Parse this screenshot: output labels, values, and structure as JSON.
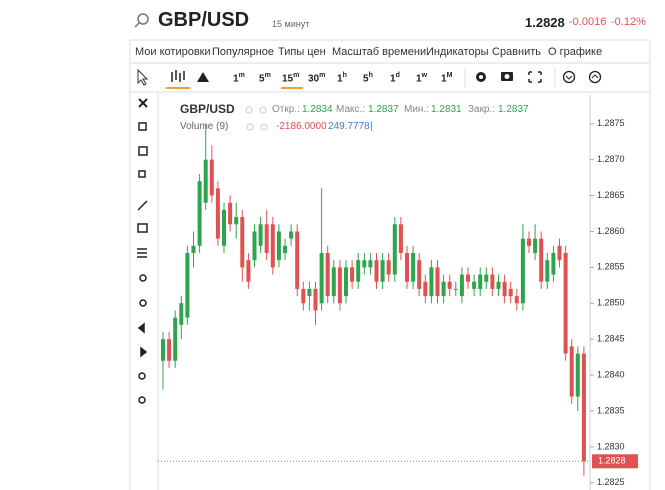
{
  "header": {
    "symbol": "GBP/USD",
    "interval": "15 минут",
    "price": "1.2828",
    "change": "-0.0016",
    "change_pct": "-0.12%"
  },
  "menu": [
    "Мои котировки",
    "Популярное",
    "Типы цен",
    "Масштаб времени",
    "Индикаторы",
    "Сравнить",
    "О графике"
  ],
  "timeframes": [
    {
      "n": "1",
      "u": "m"
    },
    {
      "n": "5",
      "u": "m"
    },
    {
      "n": "15",
      "u": "m"
    },
    {
      "n": "30",
      "u": "m"
    },
    {
      "n": "1",
      "u": "h"
    },
    {
      "n": "5",
      "u": "h"
    },
    {
      "n": "1",
      "u": "d"
    },
    {
      "n": "1",
      "u": "w"
    },
    {
      "n": "1",
      "u": "M"
    }
  ],
  "legend": {
    "symbol": "GBP/USD",
    "open_label": "Откр.:",
    "open": "1.2834",
    "high_label": "Макс.:",
    "high": "1.2837",
    "low_label": "Мин.:",
    "low": "1.2831",
    "close_label": "Закр.:",
    "close": "1.2837",
    "volume_label": "Volume (9)",
    "volume_a": "-2186.0000",
    "volume_b": "249.7778",
    "sep": "|"
  },
  "chart_data": {
    "type": "candlestick",
    "up_color": "#2ea44f",
    "down_color": "#e0524f",
    "ylim": [
      1.2824,
      1.2879
    ],
    "yticks": [
      1.2825,
      {
        "value": 1.283,
        "label": "1.2830"
      },
      1.2835,
      {
        "value": 1.284,
        "label": "1.2840"
      },
      1.2845,
      {
        "value": 1.285,
        "label": "1.2850"
      },
      1.2855,
      {
        "value": 1.286,
        "label": "1.2860"
      },
      1.2865,
      {
        "value": 1.287,
        "label": "1.2870"
      },
      1.2875
    ],
    "last_price": 1.2828,
    "candles": [
      [
        1.2842,
        1.2846,
        1.2838,
        1.2845
      ],
      [
        1.2845,
        1.2846,
        1.2841,
        1.2842
      ],
      [
        1.2842,
        1.2849,
        1.2841,
        1.2848
      ],
      [
        1.2847,
        1.2851,
        1.2845,
        1.285
      ],
      [
        1.2848,
        1.2858,
        1.2847,
        1.2857
      ],
      [
        1.2857,
        1.286,
        1.2855,
        1.2858
      ],
      [
        1.2858,
        1.2868,
        1.2857,
        1.2867
      ],
      [
        1.2864,
        1.2875,
        1.2863,
        1.287
      ],
      [
        1.287,
        1.2872,
        1.2864,
        1.2865
      ],
      [
        1.2866,
        1.2867,
        1.2858,
        1.2859
      ],
      [
        1.2858,
        1.2864,
        1.2857,
        1.2863
      ],
      [
        1.2864,
        1.2865,
        1.286,
        1.2861
      ],
      [
        1.2861,
        1.2864,
        1.2859,
        1.2862
      ],
      [
        1.2862,
        1.2863,
        1.2853,
        1.2855
      ],
      [
        1.2856,
        1.2857,
        1.2852,
        1.2853
      ],
      [
        1.2856,
        1.2861,
        1.2855,
        1.286
      ],
      [
        1.2858,
        1.2862,
        1.2857,
        1.2861
      ],
      [
        1.2861,
        1.2863,
        1.2856,
        1.2857
      ],
      [
        1.2861,
        1.2862,
        1.2854,
        1.2855
      ],
      [
        1.2856,
        1.2861,
        1.2855,
        1.286
      ],
      [
        1.2857,
        1.2859,
        1.2856,
        1.2858
      ],
      [
        1.2859,
        1.2861,
        1.2858,
        1.286
      ],
      [
        1.286,
        1.2861,
        1.2851,
        1.2852
      ],
      [
        1.2852,
        1.2853,
        1.2849,
        1.285
      ],
      [
        1.2851,
        1.2853,
        1.2849,
        1.2852
      ],
      [
        1.2852,
        1.2853,
        1.2847,
        1.2849
      ],
      [
        1.285,
        1.2866,
        1.2849,
        1.2857
      ],
      [
        1.2857,
        1.2858,
        1.285,
        1.2851
      ],
      [
        1.2851,
        1.2856,
        1.285,
        1.2855
      ],
      [
        1.2855,
        1.2856,
        1.2849,
        1.285
      ],
      [
        1.2851,
        1.2856,
        1.285,
        1.2855
      ],
      [
        1.2855,
        1.2856,
        1.2852,
        1.2853
      ],
      [
        1.2853,
        1.2857,
        1.2852,
        1.2856
      ],
      [
        1.2855,
        1.2857,
        1.2854,
        1.2856
      ],
      [
        1.2855,
        1.2857,
        1.2854,
        1.2856
      ],
      [
        1.2856,
        1.2857,
        1.2852,
        1.2853
      ],
      [
        1.2853,
        1.2857,
        1.2852,
        1.2856
      ],
      [
        1.2856,
        1.2857,
        1.2853,
        1.2854
      ],
      [
        1.2854,
        1.2862,
        1.2853,
        1.2861
      ],
      [
        1.2861,
        1.2862,
        1.2856,
        1.2857
      ],
      [
        1.2857,
        1.2858,
        1.2852,
        1.2853
      ],
      [
        1.2853,
        1.2858,
        1.2852,
        1.2857
      ],
      [
        1.2856,
        1.2857,
        1.2851,
        1.2852
      ],
      [
        1.2853,
        1.2854,
        1.285,
        1.2851
      ],
      [
        1.2851,
        1.2856,
        1.285,
        1.2855
      ],
      [
        1.2855,
        1.2856,
        1.285,
        1.2851
      ],
      [
        1.2851,
        1.2854,
        1.285,
        1.2853
      ],
      [
        1.2853,
        1.2854,
        1.2851,
        1.2852
      ],
      [
        1.2852,
        1.2853,
        1.2851,
        1.2852
      ],
      [
        1.2851,
        1.2855,
        1.285,
        1.2854
      ],
      [
        1.2854,
        1.2855,
        1.2852,
        1.2853
      ],
      [
        1.2852,
        1.2854,
        1.2851,
        1.2853
      ],
      [
        1.2852,
        1.2855,
        1.2851,
        1.2854
      ],
      [
        1.2853,
        1.2855,
        1.2852,
        1.2854
      ],
      [
        1.2854,
        1.2855,
        1.2851,
        1.2852
      ],
      [
        1.2852,
        1.2854,
        1.2851,
        1.2853
      ],
      [
        1.2853,
        1.2854,
        1.285,
        1.2851
      ],
      [
        1.2852,
        1.2853,
        1.285,
        1.2851
      ],
      [
        1.2851,
        1.2852,
        1.2849,
        1.285
      ],
      [
        1.285,
        1.2861,
        1.2849,
        1.2859
      ],
      [
        1.2859,
        1.286,
        1.2857,
        1.2858
      ],
      [
        1.2857,
        1.2861,
        1.2856,
        1.2859
      ],
      [
        1.2859,
        1.286,
        1.2852,
        1.2853
      ],
      [
        1.2853,
        1.2857,
        1.2852,
        1.2856
      ],
      [
        1.2854,
        1.2858,
        1.2853,
        1.2857
      ],
      [
        1.2858,
        1.2859,
        1.2855,
        1.2856
      ],
      [
        1.2857,
        1.2858,
        1.2842,
        1.2843
      ],
      [
        1.2844,
        1.2845,
        1.2836,
        1.2837
      ],
      [
        1.2837,
        1.2844,
        1.2835,
        1.2843
      ],
      [
        1.2843,
        1.2844,
        1.2826,
        1.2828
      ]
    ]
  }
}
